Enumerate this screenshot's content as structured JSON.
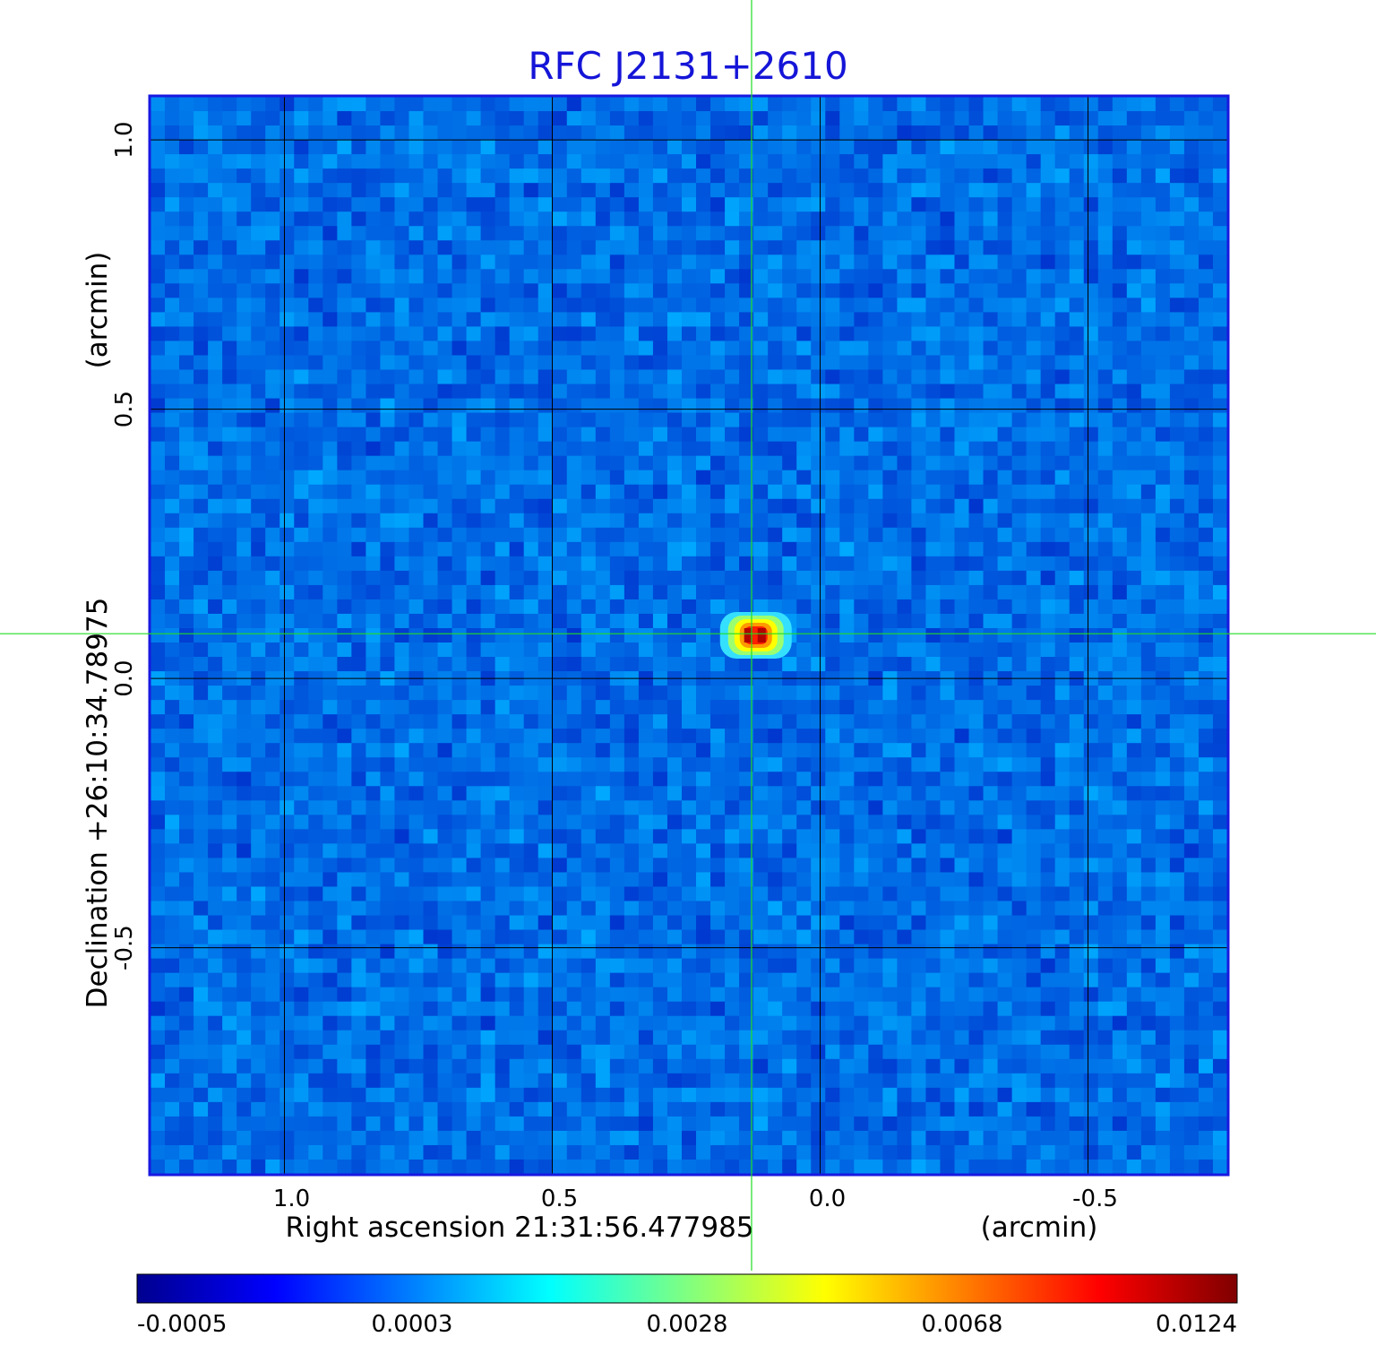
{
  "chart_data": {
    "type": "heatmap",
    "title": "RFC J2131+2610",
    "xlabel": "Right ascension  21:31:56.477985",
    "xunit": "(arcmin)",
    "ylabel": "Declination  +26:10:34.78975",
    "yunit": "(arcmin)",
    "xlim": [
      1.25,
      -0.76
    ],
    "ylim": [
      -0.92,
      1.08
    ],
    "x_ticks": [
      {
        "value": 1.0,
        "label": "1.0"
      },
      {
        "value": 0.5,
        "label": "0.5"
      },
      {
        "value": 0.0,
        "label": "0.0"
      },
      {
        "value": -0.5,
        "label": "-0.5"
      }
    ],
    "y_ticks": [
      {
        "value": 1.0,
        "label": "1.0"
      },
      {
        "value": 0.5,
        "label": "0.5"
      },
      {
        "value": 0.0,
        "label": "0.0"
      },
      {
        "value": -0.5,
        "label": "-0.5"
      }
    ],
    "grid": true,
    "crosshair": {
      "x": 0.128,
      "y": 0.083,
      "color": "#22dd22"
    },
    "source_peak": {
      "x": 0.12,
      "y": 0.08,
      "value": 0.0124
    },
    "colormap": "jet",
    "colorbar": {
      "ticks": [
        "-0.0005",
        "0.0003",
        "0.0028",
        "0.0068",
        "0.0124"
      ],
      "min": -0.0005,
      "max": 0.0124
    }
  }
}
